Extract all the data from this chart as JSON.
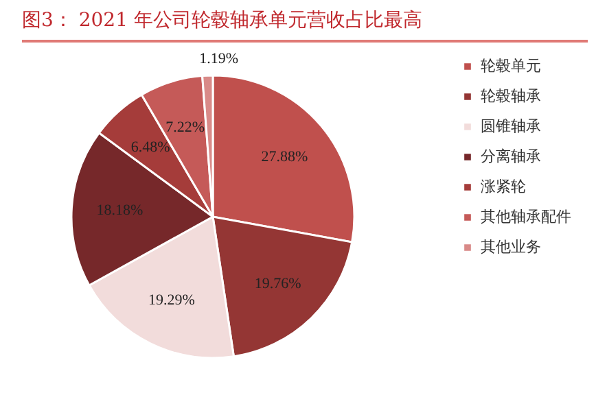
{
  "chart_data": {
    "type": "pie",
    "title": "图3：  2021 年公司轮毂轴承单元营收占比最高",
    "categories": [
      "轮毂单元",
      "轮毂轴承",
      "圆锥轴承",
      "分离轴承",
      "涨紧轮",
      "其他轴承配件",
      "其他业务"
    ],
    "values": [
      27.88,
      19.76,
      19.29,
      18.18,
      6.48,
      7.22,
      1.19
    ],
    "colors": [
      "#c0504d",
      "#943634",
      "#f2dcdb",
      "#76282a",
      "#a53c3a",
      "#c55a58",
      "#d98a88"
    ],
    "value_labels": [
      "27.88%",
      "19.76%",
      "19.29%",
      "18.18%",
      "6.48%",
      "7.22%",
      "1.19%"
    ],
    "legend": "right"
  }
}
